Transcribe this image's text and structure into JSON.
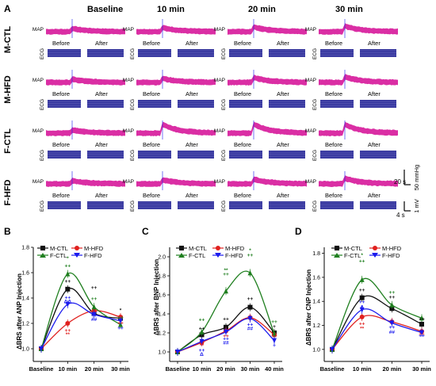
{
  "panel_a": {
    "letter": "A",
    "time_headers": [
      "Baseline",
      "10 min",
      "20 min",
      "30 min"
    ],
    "groups": [
      "M-CTL",
      "M-HFD",
      "F-CTL",
      "F-HFD"
    ],
    "trace_labels": {
      "map": "MAP",
      "ecg": "ECG"
    },
    "before_label": "Before",
    "after_label": "After",
    "scale_bars": {
      "map_amp": "50 mmHg",
      "map_time": "20 s",
      "ecg_amp": "1 mV",
      "ecg_time": "4 s"
    },
    "colors": {
      "map": "#d6179a",
      "ecg": "#2a2a96"
    }
  },
  "legend_labels": [
    "M-CTL",
    "M-HFD",
    "F-CTL",
    "F-HFD"
  ],
  "series_colors": {
    "M-CTL": "#111111",
    "M-HFD": "#e0201e",
    "F-CTL": "#1f7f1f",
    "F-HFD": "#1a1aee"
  },
  "chart_data": [
    {
      "panel": "B",
      "type": "line",
      "ylabel": "ΔBRS after ANP Injection",
      "xlabel": "",
      "categories": [
        "Baseline",
        "10 min",
        "20 min",
        "30 min"
      ],
      "ylim": [
        0.9,
        1.8
      ],
      "yticks": [
        1.0,
        1.2,
        1.4,
        1.6,
        1.8
      ],
      "legend_position": "top",
      "series": [
        {
          "name": "M-CTL",
          "values": [
            1.0,
            1.47,
            1.28,
            1.24
          ]
        },
        {
          "name": "M-HFD",
          "values": [
            1.0,
            1.2,
            1.3,
            1.25
          ]
        },
        {
          "name": "F-CTL",
          "values": [
            1.0,
            1.59,
            1.33,
            1.19
          ]
        },
        {
          "name": "F-HFD",
          "values": [
            1.0,
            1.35,
            1.27,
            1.22
          ]
        }
      ],
      "annotations": [
        {
          "x": "10 min",
          "text": "*",
          "color": "#1f7f1f",
          "y": 1.7
        },
        {
          "x": "10 min",
          "text": "++",
          "color": "#1f7f1f",
          "y": 1.64
        },
        {
          "x": "10 min",
          "text": "++",
          "color": "#111111",
          "y": 1.52
        },
        {
          "x": "10 min",
          "text": "++",
          "color": "#1a1aee",
          "y": 1.39
        },
        {
          "x": "10 min",
          "text": "ΔΔ",
          "color": "#1a1aee",
          "y": 1.36
        },
        {
          "x": "10 min",
          "text": "++",
          "color": "#e0201e",
          "y": 1.13
        },
        {
          "x": "10 min",
          "text": "**",
          "color": "#e0201e",
          "y": 1.1
        },
        {
          "x": "20 min",
          "text": "++",
          "color": "#111111",
          "y": 1.47
        },
        {
          "x": "20 min",
          "text": "++",
          "color": "#1f7f1f",
          "y": 1.38
        },
        {
          "x": "20 min",
          "text": "++",
          "color": "#1a1aee",
          "y": 1.25
        },
        {
          "x": "20 min",
          "text": "##",
          "color": "#1a1aee",
          "y": 1.22
        },
        {
          "x": "30 min",
          "text": "*",
          "color": "#111111",
          "y": 1.29
        },
        {
          "x": "30 min",
          "text": "++",
          "color": "#1f7f1f",
          "y": 1.23
        },
        {
          "x": "30 min",
          "text": "++",
          "color": "#e0201e",
          "y": 1.19
        },
        {
          "x": "30 min",
          "text": "++",
          "color": "#1a1aee",
          "y": 1.15
        }
      ]
    },
    {
      "panel": "C",
      "type": "line",
      "ylabel": "ΔBRS after BNP Injection",
      "xlabel": "",
      "categories": [
        "Baseline",
        "10 min",
        "20 min",
        "30 min",
        "40 min"
      ],
      "ylim": [
        0.9,
        2.1
      ],
      "yticks": [
        1.0,
        1.2,
        1.4,
        1.6,
        1.8,
        2.0
      ],
      "legend_position": "top",
      "series": [
        {
          "name": "M-CTL",
          "values": [
            1.0,
            1.18,
            1.26,
            1.47,
            1.2
          ]
        },
        {
          "name": "M-HFD",
          "values": [
            1.0,
            1.1,
            1.22,
            1.36,
            1.18
          ]
        },
        {
          "name": "F-CTL",
          "values": [
            1.0,
            1.21,
            1.64,
            1.83,
            1.19
          ]
        },
        {
          "name": "F-HFD",
          "values": [
            1.0,
            1.11,
            1.21,
            1.35,
            1.12
          ]
        }
      ],
      "annotations": [
        {
          "x": "10 min",
          "text": "++",
          "color": "#1f7f1f",
          "y": 1.32
        },
        {
          "x": "10 min",
          "text": "++",
          "color": "#111111",
          "y": 1.23
        },
        {
          "x": "10 min",
          "text": "**",
          "color": "#e0201e",
          "y": 1.05
        },
        {
          "x": "10 min",
          "text": "++",
          "color": "#1a1aee",
          "y": 1.0
        },
        {
          "x": "10 min",
          "text": "Δ",
          "color": "#1a1aee",
          "y": 0.96
        },
        {
          "x": "20 min",
          "text": "**",
          "color": "#1f7f1f",
          "y": 1.84
        },
        {
          "x": "20 min",
          "text": "++",
          "color": "#1f7f1f",
          "y": 1.8
        },
        {
          "x": "20 min",
          "text": "++",
          "color": "#111111",
          "y": 1.33
        },
        {
          "x": "20 min",
          "text": "++",
          "color": "#e0201e",
          "y": 1.15
        },
        {
          "x": "20 min",
          "text": "++",
          "color": "#1a1aee",
          "y": 1.12
        },
        {
          "x": "20 min",
          "text": "##",
          "color": "#1a1aee",
          "y": 1.08
        },
        {
          "x": "30 min",
          "text": "*",
          "color": "#1f7f1f",
          "y": 2.05
        },
        {
          "x": "30 min",
          "text": "++",
          "color": "#1f7f1f",
          "y": 2.0
        },
        {
          "x": "30 min",
          "text": "++",
          "color": "#111111",
          "y": 1.54
        },
        {
          "x": "30 min",
          "text": "++",
          "color": "#1a1aee",
          "y": 1.27
        },
        {
          "x": "30 min",
          "text": "##",
          "color": "#1a1aee",
          "y": 1.23
        },
        {
          "x": "40 min",
          "text": "++",
          "color": "#1f7f1f",
          "y": 1.3
        },
        {
          "x": "40 min",
          "text": "+",
          "color": "#111111",
          "y": 1.25
        },
        {
          "x": "40 min",
          "text": "++",
          "color": "#e0201e",
          "y": 1.15
        },
        {
          "x": "40 min",
          "text": "+",
          "color": "#1a1aee",
          "y": 1.05
        }
      ]
    },
    {
      "panel": "D",
      "type": "line",
      "ylabel": "ΔBRS after CNP Injection",
      "xlabel": "",
      "categories": [
        "Baseline",
        "10 min",
        "20 min",
        "30 min"
      ],
      "ylim": [
        0.9,
        1.85
      ],
      "yticks": [
        1.0,
        1.2,
        1.4,
        1.6,
        1.8
      ],
      "legend_position": "top",
      "series": [
        {
          "name": "M-CTL",
          "values": [
            1.0,
            1.43,
            1.34,
            1.21
          ]
        },
        {
          "name": "M-HFD",
          "values": [
            1.0,
            1.27,
            1.23,
            1.15
          ]
        },
        {
          "name": "F-CTL",
          "values": [
            1.0,
            1.58,
            1.37,
            1.26
          ]
        },
        {
          "name": "F-HFD",
          "values": [
            1.0,
            1.33,
            1.22,
            1.14
          ]
        }
      ],
      "annotations": [
        {
          "x": "10 min",
          "text": "*",
          "color": "#1f7f1f",
          "y": 1.77
        },
        {
          "x": "10 min",
          "text": "++",
          "color": "#1f7f1f",
          "y": 1.72
        },
        {
          "x": "10 min",
          "text": "++",
          "color": "#111111",
          "y": 1.48
        },
        {
          "x": "10 min",
          "text": "++",
          "color": "#1a1aee",
          "y": 1.38
        },
        {
          "x": "10 min",
          "text": "Δ",
          "color": "#1a1aee",
          "y": 1.34
        },
        {
          "x": "10 min",
          "text": "++",
          "color": "#e0201e",
          "y": 1.2
        },
        {
          "x": "10 min",
          "text": "**",
          "color": "#e0201e",
          "y": 1.16
        },
        {
          "x": "20 min",
          "text": "++",
          "color": "#111111",
          "y": 1.42
        },
        {
          "x": "20 min",
          "text": "++",
          "color": "#1f7f1f",
          "y": 1.46
        },
        {
          "x": "20 min",
          "text": "++",
          "color": "#1a1aee",
          "y": 1.17
        },
        {
          "x": "20 min",
          "text": "##",
          "color": "#1a1aee",
          "y": 1.13
        },
        {
          "x": "30 min",
          "text": "++",
          "color": "#111111",
          "y": 1.24
        },
        {
          "x": "30 min",
          "text": "++",
          "color": "#e0201e",
          "y": 1.11
        },
        {
          "x": "30 min",
          "text": "++",
          "color": "#1a1aee",
          "y": 1.1
        }
      ]
    }
  ]
}
